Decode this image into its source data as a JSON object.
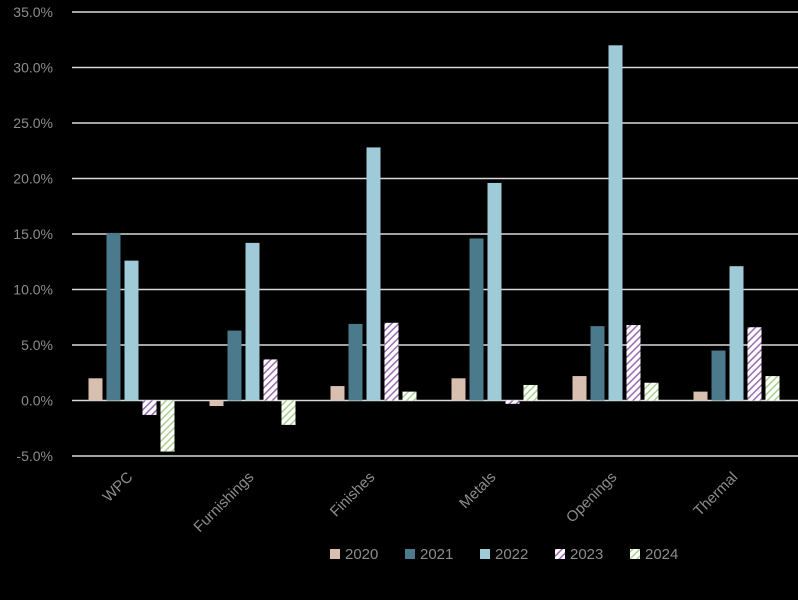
{
  "chart_data": {
    "type": "bar",
    "categories": [
      "WPC",
      "Furnishings",
      "Finishes",
      "Metals",
      "Openings",
      "Thermal"
    ],
    "series": [
      {
        "name": "2020",
        "color": "#d9bfb0",
        "pattern": "solid",
        "values": [
          2.0,
          -0.5,
          1.3,
          2.0,
          2.2,
          0.8
        ]
      },
      {
        "name": "2021",
        "color": "#4a7a8c",
        "pattern": "solid",
        "values": [
          15.1,
          6.3,
          6.9,
          14.6,
          6.7,
          4.5
        ]
      },
      {
        "name": "2022",
        "color": "#9fcbd9",
        "pattern": "solid",
        "values": [
          12.6,
          14.2,
          22.8,
          19.6,
          32.0,
          12.1
        ]
      },
      {
        "name": "2023",
        "color": "#b58cc7",
        "pattern": "hatch",
        "values": [
          -1.3,
          3.7,
          7.0,
          -0.3,
          6.8,
          6.6
        ]
      },
      {
        "name": "2024",
        "color": "#c5e0b4",
        "pattern": "hatch",
        "values": [
          -4.6,
          -2.2,
          0.8,
          1.4,
          1.6,
          2.2
        ]
      }
    ],
    "y_ticks": [
      "35.0%",
      "30.0%",
      "25.0%",
      "20.0%",
      "15.0%",
      "10.0%",
      "5.0%",
      "0.0%",
      "-5.0%"
    ],
    "ylim": [
      -5,
      35
    ],
    "grid": true,
    "legend_position": "bottom"
  }
}
